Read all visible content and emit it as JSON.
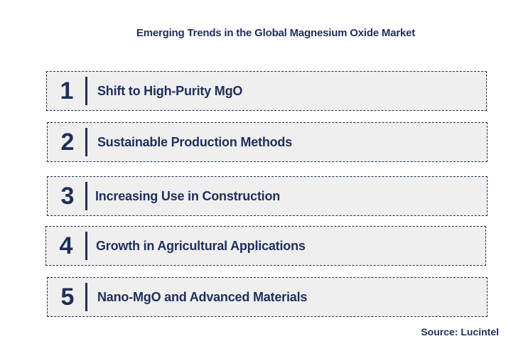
{
  "title": "Emerging Trends in the Global Magnesium Oxide Market",
  "trends": [
    {
      "number": "1",
      "label": "Shift to High-Purity MgO"
    },
    {
      "number": "2",
      "label": "Sustainable Production Methods"
    },
    {
      "number": "3",
      "label": "Increasing Use in Construction"
    },
    {
      "number": "4",
      "label": "Growth in Agricultural Applications"
    },
    {
      "number": "5",
      "label": "Nano-MgO and Advanced Materials"
    }
  ],
  "source": "Source: Lucintel",
  "colors": {
    "primary": "#1f2f5c",
    "box_fill": "#efefef",
    "background": "#ffffff"
  }
}
